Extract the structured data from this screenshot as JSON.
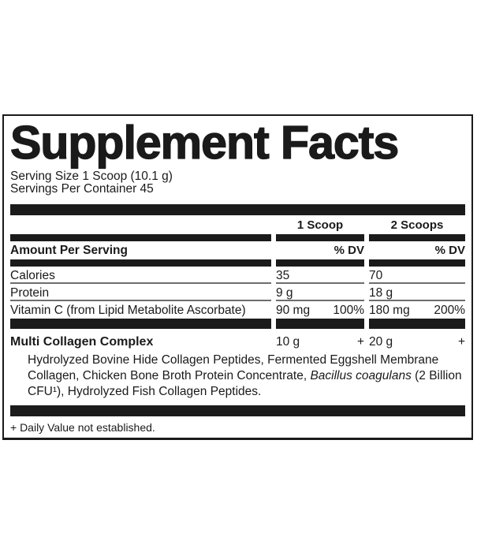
{
  "panel": {
    "title": "Supplement Facts",
    "serving_size": "Serving Size 1 Scoop (10.1 g)",
    "servings_per_container": "Servings Per Container 45",
    "scoop_columns": [
      "1 Scoop",
      "2 Scoops"
    ],
    "amount_per_serving_label": "Amount Per Serving",
    "percent_dv_label": "% DV",
    "rows": [
      {
        "name": "Calories",
        "scoop1": {
          "amount": "35",
          "dv": ""
        },
        "scoop2": {
          "amount": "70",
          "dv": ""
        }
      },
      {
        "name": "Protein",
        "scoop1": {
          "amount": "9 g",
          "dv": ""
        },
        "scoop2": {
          "amount": "18 g",
          "dv": ""
        }
      },
      {
        "name": "Vitamin C (from Lipid Metabolite Ascorbate)",
        "scoop1": {
          "amount": "90 mg",
          "dv": "100%"
        },
        "scoop2": {
          "amount": "180 mg",
          "dv": "200%"
        }
      }
    ],
    "complex": {
      "name": "Multi Collagen Complex",
      "scoop1": {
        "amount": "10 g",
        "dv": "+"
      },
      "scoop2": {
        "amount": "20 g",
        "dv": "+"
      },
      "description": [
        {
          "text": "Hydrolyzed Bovine Hide Collagen Peptides, Fermented Eggshell Membrane Collagen, Chicken Bone Broth Protein Concentrate, "
        },
        {
          "text": "Bacillus coagulans"
        },
        {
          "text": " (2 Billion CFU¹), Hydrolyzed Fish Collagen Peptides."
        }
      ]
    },
    "footnote": "+ Daily Value not established."
  },
  "colors": {
    "ink": "#1a1a1a",
    "bar": "#1b1b1b",
    "rule": "#6e6e6e",
    "background": "#ffffff"
  }
}
